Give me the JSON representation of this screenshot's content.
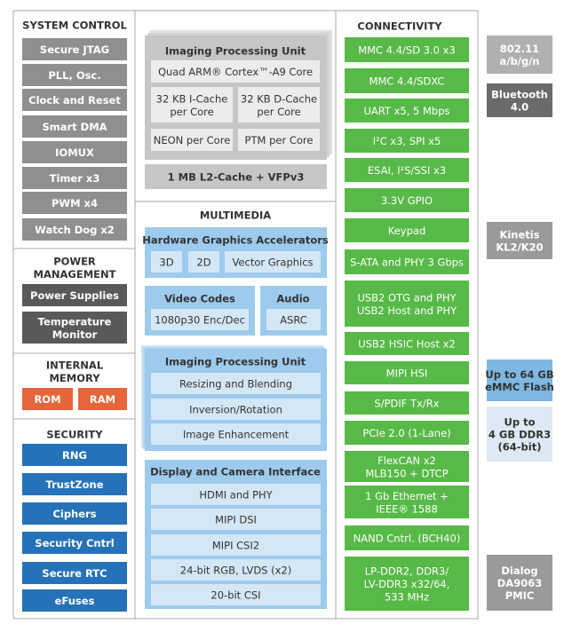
{
  "system_control": {
    "title": "SYSTEM CONTROL",
    "items": [
      "Secure JTAG",
      "PLL, Osc.",
      "Clock and Reset",
      "Smart DMA",
      "IOMUX",
      "Timer x3",
      "PWM x4",
      "Watch Dog x2"
    ]
  },
  "power_management": {
    "title": [
      "POWER",
      "MANAGEMENT"
    ],
    "items": [
      "Power Supplies",
      [
        "Temperature",
        "Monitor"
      ]
    ]
  },
  "internal_memory": {
    "title": [
      "INTERNAL",
      "MEMORY"
    ],
    "items": [
      "ROM",
      "RAM"
    ]
  },
  "security": {
    "title": "SECURITY",
    "items": [
      "RNG",
      "TrustZone",
      "Ciphers",
      "Security Cntrl",
      "Secure RTC",
      "eFuses"
    ]
  },
  "cpu": {
    "title": "Imaging Processing Unit",
    "core": "Quad ARM® Cortex™-A9 Core",
    "blocks": [
      [
        "32 KB I-Cache",
        "per Core"
      ],
      [
        "32 KB D-Cache",
        "per Core"
      ],
      "NEON per Core",
      "PTM per Core"
    ],
    "l2": "1 MB L2-Cache + VFPv3"
  },
  "multimedia": {
    "title": "MULTIMEDIA",
    "graphics": {
      "title": "Hardware Graphics Accelerators",
      "items": [
        "3D",
        "2D",
        "Vector Graphics"
      ]
    },
    "video": {
      "title": "Video Codes",
      "items": [
        "1080p30 Enc/Dec"
      ]
    },
    "audio": {
      "title": "Audio",
      "items": [
        "ASRC"
      ]
    },
    "ipu": {
      "title": "Imaging Processing Unit",
      "items": [
        "Resizing and Blending",
        "Inversion/Rotation",
        "Image Enhancement"
      ]
    },
    "display": {
      "title": "Display and Camera Interface",
      "items": [
        "HDMI and PHY",
        "MIPI DSI",
        "MIPI CSI2",
        "24-bit RGB, LVDS (x2)",
        "20-bit CSI"
      ]
    }
  },
  "connectivity": {
    "title": "CONNECTIVITY",
    "items": [
      "MMC 4.4/SD 3.0 x3",
      "MMC 4.4/SDXC",
      "UART x5, 5 Mbps",
      "I²C x3, SPI x5",
      "ESAI, I²S/SSI x3",
      "3.3V GPIO",
      "Keypad",
      "S-ATA and PHY 3 Gbps",
      [
        "USB2 OTG and PHY",
        "USB2 Host and PHY"
      ],
      "USB2 HSIC Host x2",
      "MIPI HSI",
      "S/PDIF Tx/Rx",
      "PCIe 2.0 (1-Lane)",
      [
        "FlexCAN x2",
        "MLB150 + DTCP"
      ],
      [
        "1 Gb Ethernet +",
        "IEEE® 1588"
      ],
      "NAND Cntrl. (BCH40)",
      [
        "LP-DDR2, DDR3/",
        "LV-DDR3 x32/64,",
        "533 MHz"
      ]
    ]
  },
  "external": {
    "items": [
      [
        "802.11",
        "a/b/g/n"
      ],
      [
        "Bluetooth",
        "4.0"
      ],
      [
        "Kinetis",
        "KL2/K20"
      ],
      [
        "Up to 64 GB",
        "eMMC Flash"
      ],
      [
        "Up to",
        "4 GB DDR3",
        "(64-bit)"
      ],
      [
        "Dialog",
        "DA9063",
        "PMIC"
      ]
    ]
  }
}
